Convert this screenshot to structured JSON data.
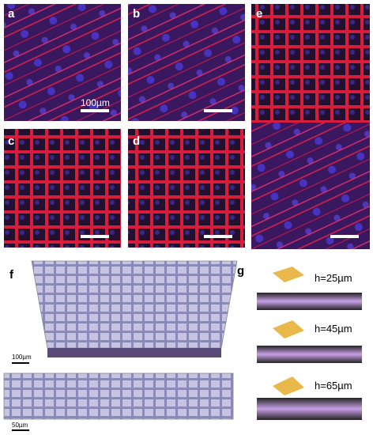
{
  "labels": [
    "a",
    "b",
    "c",
    "d",
    "e",
    "f",
    "g"
  ],
  "scale_bars": [
    "100µm",
    "100µm",
    "50µm"
  ],
  "heights": [
    "h=25µm",
    "h=45µm",
    "h=65µm"
  ]
}
